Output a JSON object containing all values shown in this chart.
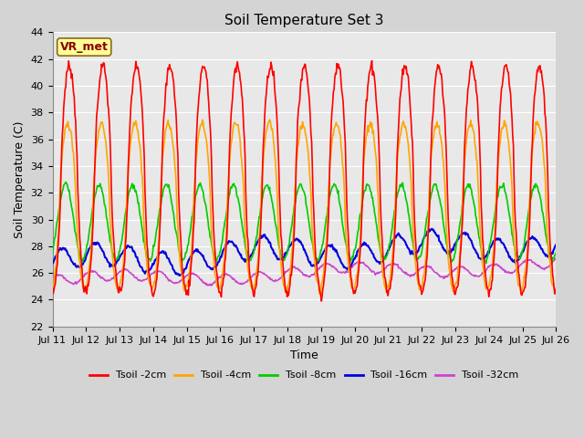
{
  "title": "Soil Temperature Set 3",
  "xlabel": "Time",
  "ylabel": "Soil Temperature (C)",
  "ylim": [
    22,
    44
  ],
  "yticks": [
    22,
    24,
    26,
    28,
    30,
    32,
    34,
    36,
    38,
    40,
    42,
    44
  ],
  "background_color": "#e8e8e8",
  "fig_bg_color": "#d4d4d4",
  "grid_color": "#ffffff",
  "annotation_text": "VR_met",
  "annotation_box_facecolor": "#ffff99",
  "annotation_box_edgecolor": "#8b6914",
  "annotation_text_color": "#8b0000",
  "series": {
    "Tsoil -2cm": {
      "color": "#ff0000",
      "base": 33.0,
      "amp": 8.5,
      "phase": 0.0,
      "lw": 1.2
    },
    "Tsoil -4cm": {
      "color": "#ffa500",
      "base": 31.0,
      "amp": 6.2,
      "phase": 0.25,
      "lw": 1.2
    },
    "Tsoil -8cm": {
      "color": "#00cc00",
      "base": 29.8,
      "amp": 2.8,
      "phase": 0.7,
      "lw": 1.2
    },
    "Tsoil -16cm": {
      "color": "#0000dd",
      "base": 26.8,
      "amp": 0.9,
      "phase": 1.3,
      "lw": 1.5
    },
    "Tsoil -32cm": {
      "color": "#cc44cc",
      "base": 25.8,
      "amp": 0.45,
      "phase": 2.0,
      "lw": 1.2
    }
  },
  "xtick_labels": [
    "Jul 11",
    "Jul 12",
    "Jul 13",
    "Jul 14",
    "Jul 15",
    "Jul 16",
    "Jul 17",
    "Jul 18",
    "Jul 19",
    "Jul 20",
    "Jul 21",
    "Jul 22",
    "Jul 23",
    "Jul 24",
    "Jul 25",
    "Jul 26"
  ],
  "title_fontsize": 11,
  "axis_label_fontsize": 9,
  "tick_fontsize": 8,
  "legend_fontsize": 8,
  "n_days": 15,
  "n_pts_per_day": 48
}
